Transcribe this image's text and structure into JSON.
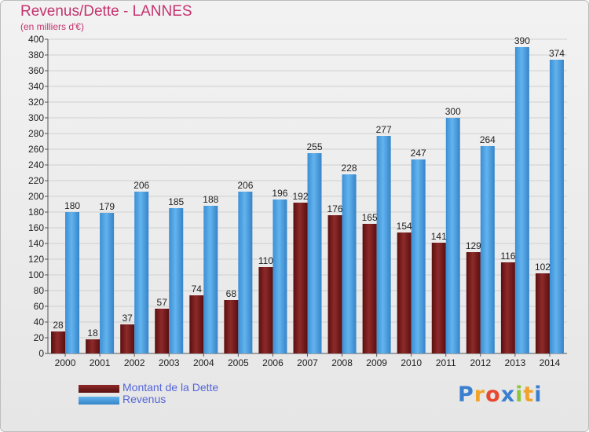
{
  "header": {
    "title": "Revenus/Dette - LANNES",
    "subtitle": "(en milliers d'€)"
  },
  "chart_data": {
    "type": "bar",
    "categories": [
      "2000",
      "2001",
      "2002",
      "2003",
      "2004",
      "2005",
      "2006",
      "2007",
      "2008",
      "2009",
      "2010",
      "2011",
      "2012",
      "2013",
      "2014"
    ],
    "series": [
      {
        "name": "Montant de la Dette",
        "color": "#7a1c1c",
        "values": [
          28,
          18,
          37,
          57,
          74,
          68,
          110,
          192,
          176,
          165,
          154,
          141,
          129,
          116,
          102
        ]
      },
      {
        "name": "Revenus",
        "color": "#4aa3e3",
        "values": [
          180,
          179,
          206,
          185,
          188,
          206,
          196,
          255,
          228,
          277,
          247,
          300,
          264,
          390,
          374
        ]
      }
    ],
    "ylim": [
      0,
      400
    ],
    "yticks": [
      0,
      20,
      40,
      60,
      80,
      100,
      120,
      140,
      160,
      180,
      200,
      220,
      240,
      260,
      280,
      300,
      320,
      340,
      360,
      380,
      400
    ],
    "grid": true,
    "legend": "bottom-left"
  },
  "legend": {
    "items": [
      {
        "label": "Montant de la Dette",
        "color": "#7a1c1c"
      },
      {
        "label": "Revenus",
        "color": "#4aa3e3"
      }
    ]
  },
  "logo": {
    "letters": [
      "P",
      "r",
      "o",
      "x",
      "i",
      "t",
      "i"
    ],
    "colors": [
      "#3a7fd0",
      "#f0a32a",
      "#e5482f",
      "#3a7fd0",
      "#8cc63f",
      "#f0a32a",
      "#3a7fd0"
    ]
  }
}
